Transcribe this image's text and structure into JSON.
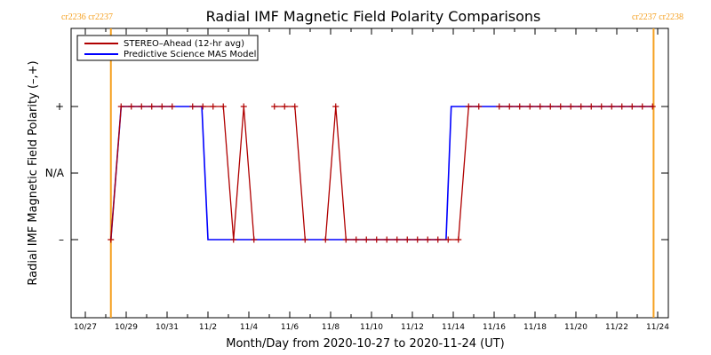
{
  "chart_data": {
    "type": "line",
    "title": "Radial IMF Magnetic Field Polarity Comparisons",
    "xlabel": "Month/Day from 2020-10-27 to 2020-11-24 (UT)",
    "ylabel": "Radial IMF Magnetic Field Polarity (–,+)",
    "x_ticks": [
      "10/27",
      "10/29",
      "10/31",
      "11/2",
      "11/4",
      "11/6",
      "11/8",
      "11/10",
      "11/12",
      "11/14",
      "11/16",
      "11/18",
      "11/20",
      "11/22",
      "11/24"
    ],
    "y_ticks": [
      "+",
      "N/A",
      "–"
    ],
    "y_values_legend": {
      "plus": 1,
      "na": 0,
      "minus": -1
    },
    "xlim": [
      0,
      28
    ],
    "ylim": [
      -2,
      2
    ],
    "carrington": [
      {
        "x": 1.25,
        "label": "cr2236 cr2237"
      },
      {
        "x": 27.8,
        "label": "cr2237 cr2238"
      }
    ],
    "legend_position": "top-left",
    "series": [
      {
        "name": "STEREO–Ahead (12-hr avg)",
        "color": "#b00000",
        "markers": true,
        "x": [
          1.25,
          1.75,
          2.25,
          2.75,
          3.25,
          3.75,
          4.25,
          4.75,
          5.25,
          5.75,
          6.25,
          6.75,
          7.25,
          7.75,
          8.25,
          8.75,
          9.25,
          9.75,
          10.25,
          10.75,
          11.25,
          11.75,
          12.25,
          12.75,
          13.25,
          13.75,
          14.25,
          14.75,
          15.25,
          15.75,
          16.25,
          16.75,
          17.25,
          17.75,
          18.25,
          18.75,
          19.25,
          19.75,
          20.25,
          20.75,
          21.25,
          21.75,
          22.25,
          22.75,
          23.25,
          23.75,
          24.25,
          24.75,
          25.25,
          25.75,
          26.25,
          26.75,
          27.25,
          27.75
        ],
        "y": [
          -1,
          1,
          1,
          1,
          1,
          1,
          1,
          null,
          1,
          1,
          1,
          1,
          -1,
          1,
          -1,
          null,
          1,
          1,
          1,
          -1,
          null,
          -1,
          1,
          -1,
          -1,
          -1,
          -1,
          -1,
          -1,
          -1,
          -1,
          -1,
          -1,
          -1,
          -1,
          1,
          1,
          null,
          1,
          1,
          1,
          1,
          1,
          1,
          1,
          1,
          1,
          1,
          1,
          1,
          1,
          1,
          1,
          1
        ]
      },
      {
        "name": "Predictive Science MAS Model",
        "color": "#0000ff",
        "markers": false,
        "x": [
          1.25,
          1.75,
          5.7,
          6.0,
          17.65,
          17.9,
          27.8
        ],
        "y": [
          -1,
          1,
          1,
          -1,
          -1,
          1,
          1
        ]
      }
    ]
  }
}
